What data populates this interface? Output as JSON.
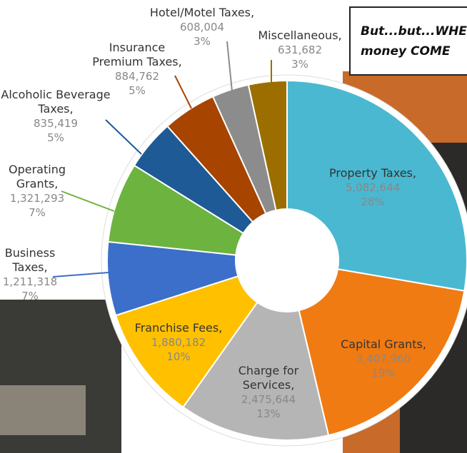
{
  "chart_data": {
    "type": "pie",
    "categories": [
      "Property Taxes,",
      "Capital Grants,",
      "Charge for Services,",
      "Franchise Fees,",
      "Business Taxes,",
      "Operating Grants,",
      "Alcoholic Beverage Taxes,",
      "Insurance Premium Taxes,",
      "Hotel/Motel Taxes,",
      "Miscellaneous,"
    ],
    "values": [
      5082644,
      3407960,
      2475644,
      1880182,
      1211318,
      1321293,
      835419,
      884762,
      608004,
      631682
    ],
    "value_labels": [
      "5,082,644",
      "3,407,960",
      "2,475,644",
      "1,880,182",
      "1,211,318",
      "1,321,293",
      "835,419",
      "884,762",
      "608,004",
      "631,682"
    ],
    "percents": [
      28,
      19,
      13,
      10,
      7,
      7,
      5,
      5,
      3,
      3
    ],
    "percent_labels": [
      "28%",
      "19%",
      "13%",
      "10%",
      "7%",
      "7%",
      "5%",
      "5%",
      "3%",
      "3%"
    ],
    "colors": [
      "#4ab8d0",
      "#f07b12",
      "#b5b5b5",
      "#ffc000",
      "#3b6fc9",
      "#6db33f",
      "#1e5a96",
      "#a64400",
      "#8c8c8c",
      "#9c6e00"
    ],
    "donut": true
  },
  "background": {
    "caption": [
      "But...but...WHE",
      "money COME"
    ]
  }
}
